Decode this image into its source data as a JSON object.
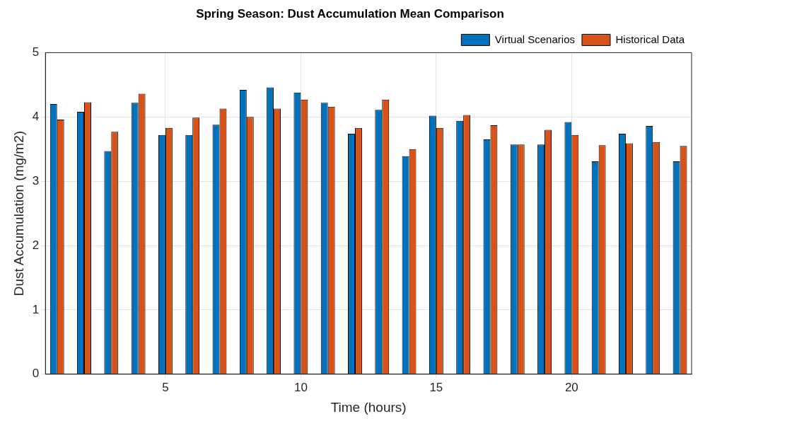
{
  "chart_data": {
    "type": "bar",
    "title": "Spring Season: Dust Accumulation Mean Comparison",
    "xlabel": "Time (hours)",
    "ylabel": "Dust Accumulation (mg/m2)",
    "x": [
      1,
      2,
      3,
      4,
      5,
      6,
      7,
      8,
      9,
      10,
      11,
      12,
      13,
      14,
      15,
      16,
      17,
      18,
      19,
      20,
      21,
      22,
      23,
      24
    ],
    "series": [
      {
        "name": "Virtual Scenarios",
        "color": "#0072bd",
        "values": [
          4.2,
          4.08,
          3.47,
          4.22,
          3.72,
          3.72,
          3.88,
          4.42,
          4.46,
          4.38,
          4.22,
          3.74,
          4.11,
          3.39,
          4.02,
          3.94,
          3.65,
          3.57,
          3.57,
          3.92,
          3.31,
          3.74,
          3.86,
          3.31
        ]
      },
      {
        "name": "Historical Data",
        "color": "#d95319",
        "values": [
          3.96,
          4.23,
          3.77,
          4.36,
          3.83,
          3.99,
          4.13,
          4.0,
          4.13,
          4.27,
          4.16,
          3.83,
          4.27,
          3.5,
          3.83,
          4.03,
          3.87,
          3.57,
          3.8,
          3.72,
          3.56,
          3.59,
          3.61,
          3.55
        ]
      }
    ],
    "xlim": [
      0.57,
      24.43
    ],
    "xticks": [
      5,
      10,
      15,
      20
    ],
    "ylim": [
      0,
      5
    ],
    "yticks": [
      0,
      1,
      2,
      3,
      4,
      5
    ],
    "grid": true,
    "legend": "top right"
  }
}
